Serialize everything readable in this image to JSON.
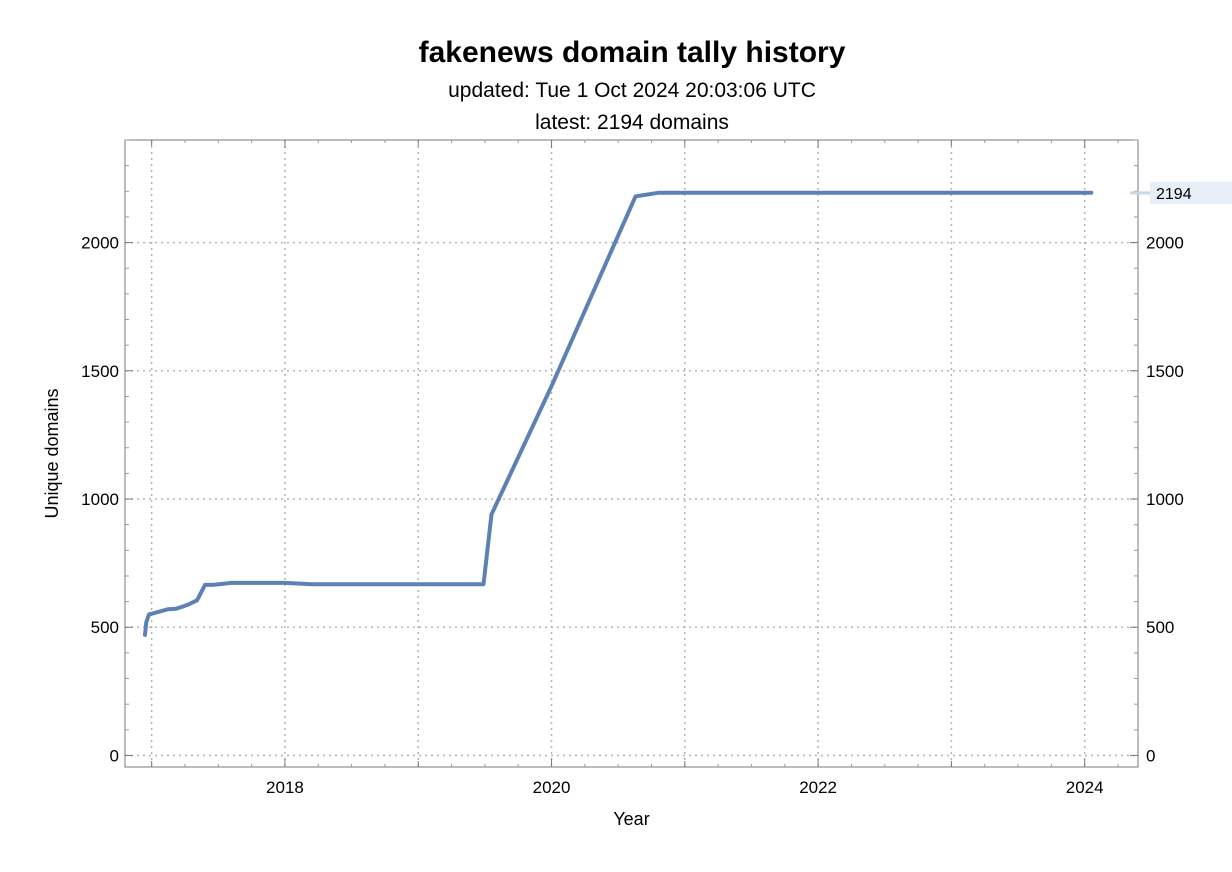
{
  "chart_data": {
    "type": "line",
    "title": "fakenews domain tally history",
    "subtitle_lines": [
      "updated: Tue 1 Oct 2024 20:03:06 UTC",
      "latest: 2194 domains"
    ],
    "xlabel": "Year",
    "ylabel": "Unique domains",
    "xlim": [
      2016.8,
      2024.4
    ],
    "ylim": [
      -45,
      2400
    ],
    "x_ticks": [
      2018,
      2020,
      2022,
      2024
    ],
    "x_tick_labels": [
      "2018",
      "2020",
      "2022",
      "2024"
    ],
    "x_minor_ticks": [
      2017,
      2019,
      2021,
      2023
    ],
    "y_ticks": [
      0,
      500,
      1000,
      1500,
      2000
    ],
    "y_tick_labels": [
      "0",
      "500",
      "1000",
      "1500",
      "2000"
    ],
    "grid": true,
    "series": [
      {
        "x": [
          2016.95,
          2016.96,
          2016.98,
          2017.05,
          2017.12,
          2017.18,
          2017.22,
          2017.28,
          2017.34,
          2017.4,
          2017.46,
          2017.6,
          2018.0,
          2018.2,
          2018.5,
          2018.9,
          2019.2,
          2019.45,
          2019.49,
          2019.55,
          2020.0,
          2020.63,
          2020.8,
          2021.5,
          2022.0,
          2022.7,
          2023.5,
          2024.05
        ],
        "y": [
          470,
          520,
          550,
          560,
          570,
          572,
          578,
          590,
          605,
          665,
          665,
          673,
          673,
          668,
          668,
          668,
          668,
          668,
          668,
          940,
          1440,
          2180,
          2194,
          2194,
          2194,
          2194,
          2194,
          2194
        ],
        "color": "#5e81b5"
      }
    ],
    "latest_value": 2194,
    "latest_value_label": "2194"
  }
}
